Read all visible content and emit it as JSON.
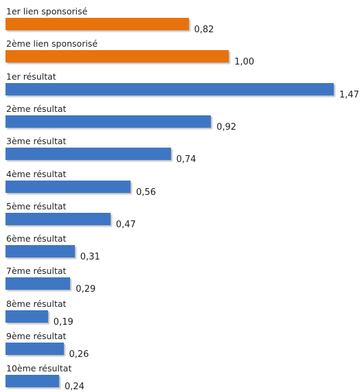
{
  "chart_data": {
    "type": "bar",
    "orientation": "horizontal",
    "categories": [
      "1er lien sponsorisé",
      "2ème lien sponsorisé",
      "1er résultat",
      "2ème résultat",
      "3ème résultat",
      "4ème résultat",
      "5ème résultat",
      "6ème résultat",
      "7ème résultat",
      "8ème résultat",
      "9ème résultat",
      "10ème résultat"
    ],
    "values": [
      0.82,
      1.0,
      1.47,
      0.92,
      0.74,
      0.56,
      0.47,
      0.31,
      0.29,
      0.19,
      0.26,
      0.24
    ],
    "value_labels": [
      "0,82",
      "1,00",
      "1,47",
      "0,92",
      "0,74",
      "0,56",
      "0,47",
      "0,31",
      "0,29",
      "0,19",
      "0,26",
      "0,24"
    ],
    "groups": [
      "sponsored",
      "sponsored",
      "organic",
      "organic",
      "organic",
      "organic",
      "organic",
      "organic",
      "organic",
      "organic",
      "organic",
      "organic"
    ],
    "colors": {
      "sponsored": "#e8720c",
      "organic": "#3f76c4"
    },
    "title": "",
    "xlabel": "",
    "ylabel": "",
    "xlim": [
      0,
      1.47
    ],
    "grid": false,
    "legend": "none"
  }
}
